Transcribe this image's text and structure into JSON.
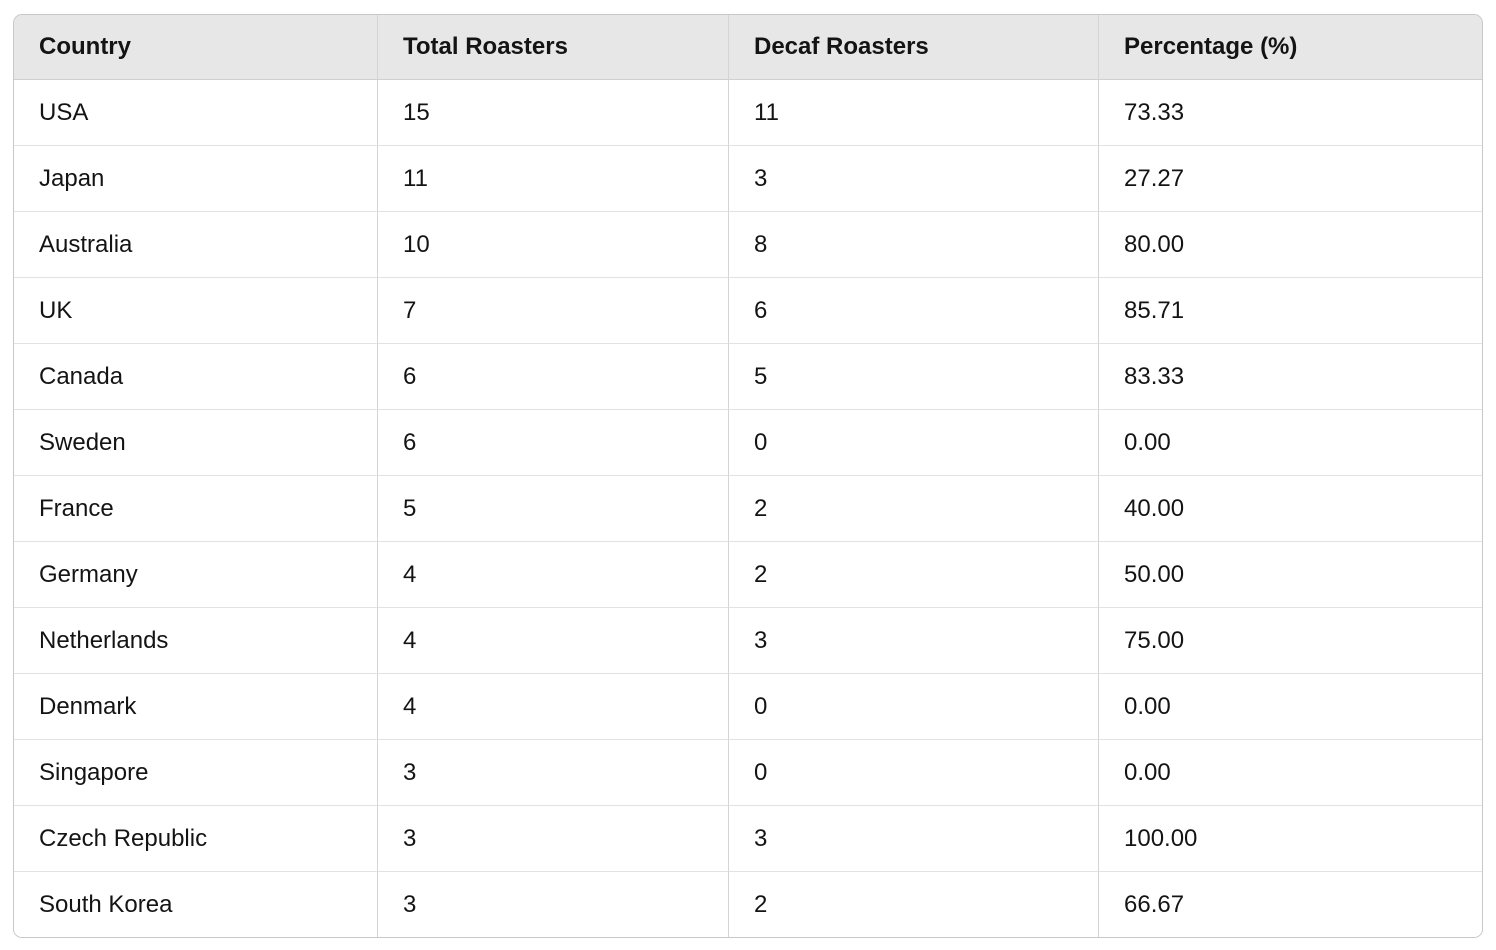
{
  "colors": {
    "page_bg": "#ffffff",
    "header_bg": "#e7e7e7",
    "outer_border": "#c8c8c8",
    "vertical_divider": "#d4d4d4",
    "horizontal_divider": "#e2e2e2",
    "header_divider": "#d0d0d0",
    "text": "#141414"
  },
  "chart_data": {
    "type": "table",
    "columns": [
      "Country",
      "Total Roasters",
      "Decaf Roasters",
      "Percentage (%)"
    ],
    "rows": [
      [
        "USA",
        15,
        11,
        "73.33"
      ],
      [
        "Japan",
        11,
        3,
        "27.27"
      ],
      [
        "Australia",
        10,
        8,
        "80.00"
      ],
      [
        "UK",
        7,
        6,
        "85.71"
      ],
      [
        "Canada",
        6,
        5,
        "83.33"
      ],
      [
        "Sweden",
        6,
        0,
        "0.00"
      ],
      [
        "France",
        5,
        2,
        "40.00"
      ],
      [
        "Germany",
        4,
        2,
        "50.00"
      ],
      [
        "Netherlands",
        4,
        3,
        "75.00"
      ],
      [
        "Denmark",
        4,
        0,
        "0.00"
      ],
      [
        "Singapore",
        3,
        0,
        "0.00"
      ],
      [
        "Czech Republic",
        3,
        3,
        "100.00"
      ],
      [
        "South Korea",
        3,
        2,
        "66.67"
      ]
    ]
  }
}
